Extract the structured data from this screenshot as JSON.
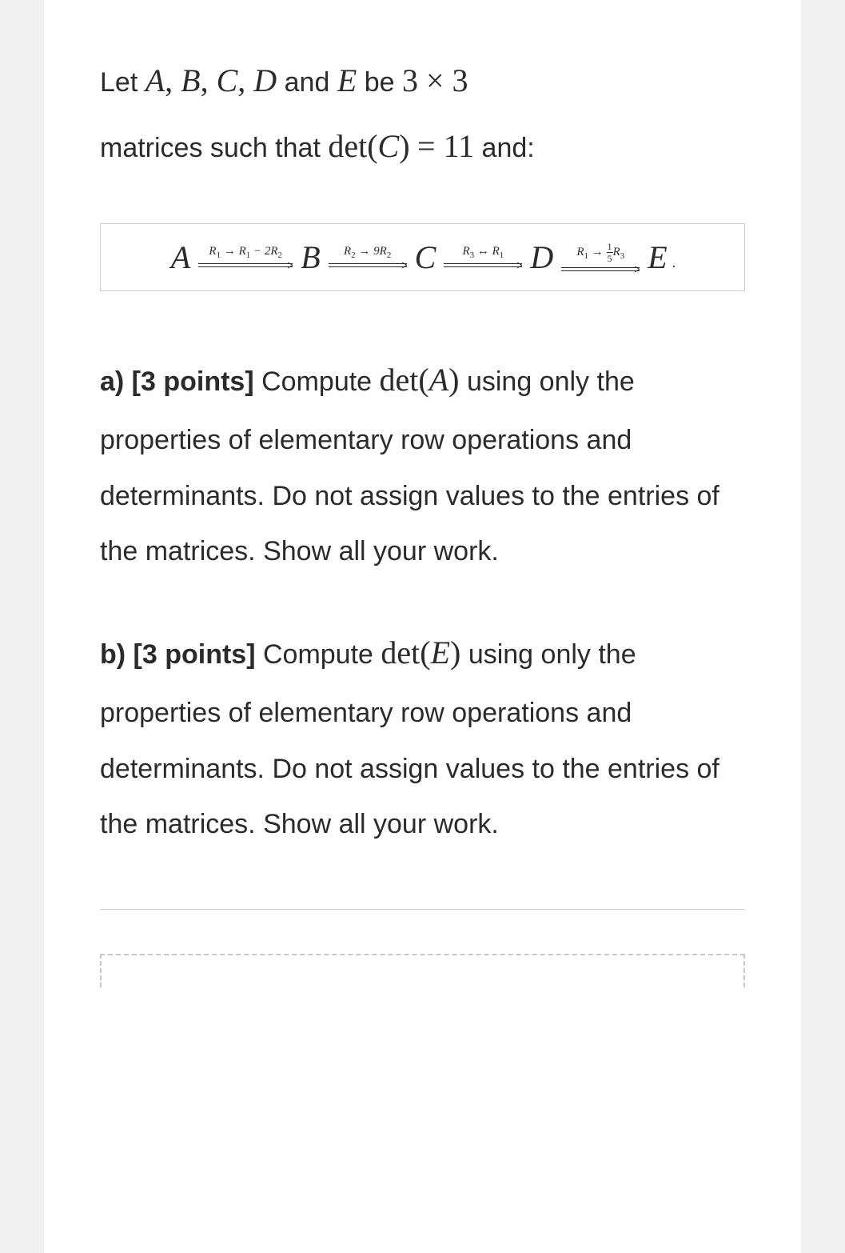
{
  "problem": {
    "intro": {
      "prefix": "Let ",
      "mats": [
        "A",
        "B",
        "C",
        "D"
      ],
      "and": " and ",
      "matE": "E",
      "be": " be ",
      "dim": "3 × 3",
      "line2a": "matrices such that ",
      "detC_label": "det",
      "detC_arg": "C",
      "eq": " = ",
      "detC_val": "11",
      "line2b": " and:"
    },
    "ops": {
      "A": "A",
      "B": "B",
      "C": "C",
      "D": "D",
      "E": "E",
      "op1": {
        "html": "R<sub>1</sub> → R<sub>1</sub> − 2R<sub>2</sub>",
        "arrow_w": 118
      },
      "op2": {
        "html": "R<sub>2</sub> → 9R<sub>2</sub>",
        "arrow_w": 98
      },
      "op3": {
        "html": "R<sub>3</sub> ↔ R<sub>1</sub>",
        "arrow_w": 98
      },
      "op4": {
        "left": "R<sub>1</sub> → ",
        "frac_num": "1",
        "frac_den": "5",
        "right": "R<sub>3</sub>",
        "arrow_w": 98
      },
      "arrow_color": "#2b2b2b"
    },
    "part_a": {
      "label": "a) [3 points]",
      "text1": " Compute ",
      "det_label": "det",
      "det_arg": "A",
      "text2": " using only the properties of elementary row operations and determinants. Do not assign values to the entries of the matrices. Show all your work."
    },
    "part_b": {
      "label": "b) [3 points]",
      "text1": " Compute ",
      "det_label": "det",
      "det_arg": "E",
      "text2": " using only the properties of elementary row operations and determinants. Do not assign values to the entries of the matrices. Show all your work."
    }
  },
  "style": {
    "box_border": "#cfcfcf",
    "text_color": "#2b2b2b",
    "dashed_border": "#c8c8c8"
  }
}
